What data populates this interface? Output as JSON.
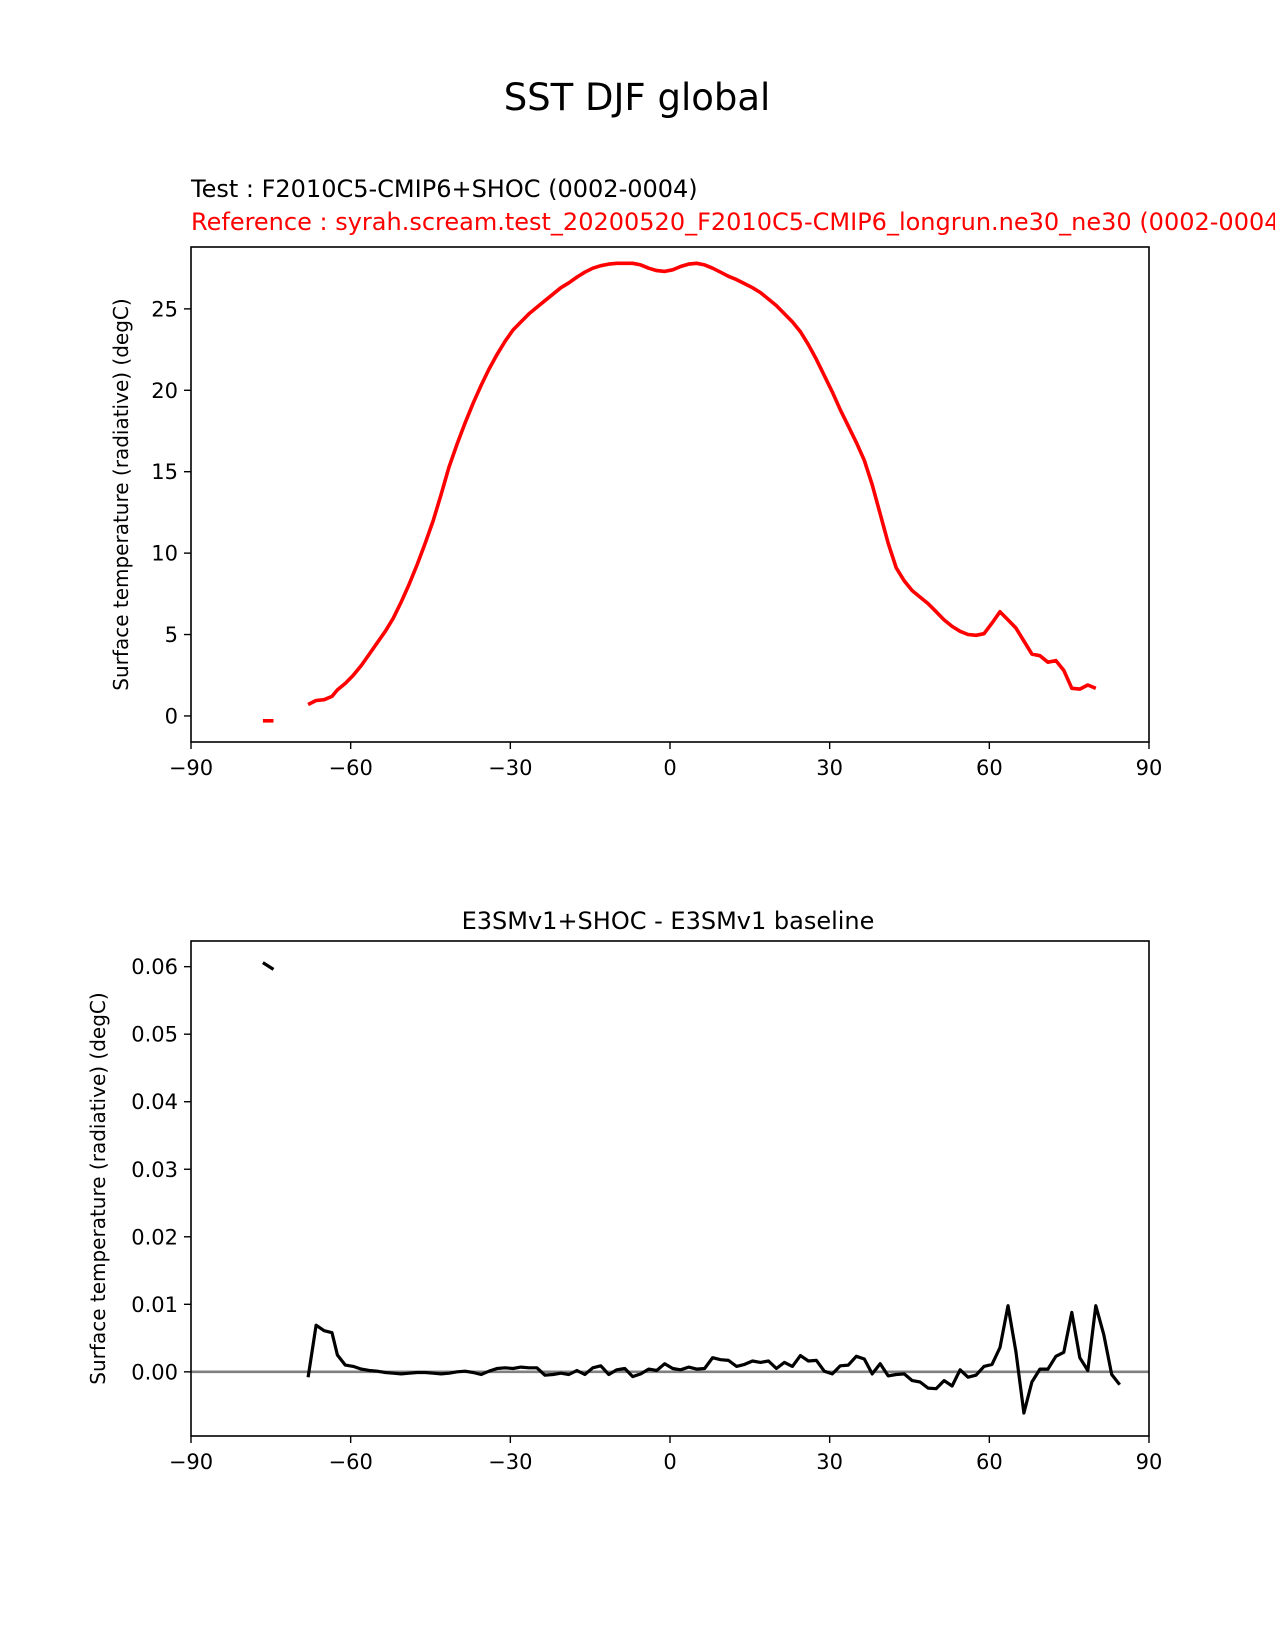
{
  "figure": {
    "suptitle": "SST DJF global"
  },
  "chart_data": [
    {
      "type": "line",
      "title_test": "Test : F2010C5-CMIP6+SHOC (0002-0004)",
      "title_reference": "Reference : syrah.scream.test_20200520_F2010C5-CMIP6_longrun.ne30_ne30 (0002-0004",
      "xlabel": "",
      "ylabel": "Surface temperature (radiative) (degC)",
      "xlim": [
        -90,
        90
      ],
      "ylim": [
        -1.6,
        28.8
      ],
      "xticks": [
        -90,
        -60,
        -30,
        0,
        30,
        60,
        90
      ],
      "xtick_labels": [
        "−90",
        "−60",
        "−30",
        "0",
        "30",
        "60",
        "90"
      ],
      "yticks": [
        0,
        5,
        10,
        15,
        20,
        25
      ],
      "ytick_labels": [
        "0",
        "5",
        "10",
        "15",
        "20",
        "25"
      ],
      "grid": false,
      "colors": {
        "series": "#ff0000"
      },
      "series": [
        {
          "segments": [
            [
              [
                -76.5,
                -0.3
              ],
              [
                -74.5,
                -0.3
              ]
            ],
            [
              [
                -68,
                0.7
              ],
              [
                -66.5,
                0.95
              ],
              [
                -65,
                1.0
              ],
              [
                -63.5,
                1.2
              ],
              [
                -62.5,
                1.6
              ],
              [
                -61,
                2.0
              ],
              [
                -59.5,
                2.5
              ],
              [
                -58,
                3.1
              ],
              [
                -56.5,
                3.8
              ],
              [
                -55,
                4.5
              ],
              [
                -53.5,
                5.2
              ],
              [
                -52,
                6.0
              ],
              [
                -50.5,
                7.0
              ],
              [
                -49,
                8.1
              ],
              [
                -47.5,
                9.3
              ],
              [
                -46,
                10.6
              ],
              [
                -44.5,
                12.0
              ],
              [
                -43,
                13.6
              ],
              [
                -41.5,
                15.3
              ],
              [
                -40,
                16.7
              ],
              [
                -38.5,
                18.0
              ],
              [
                -37,
                19.2
              ],
              [
                -35.5,
                20.3
              ],
              [
                -34,
                21.3
              ],
              [
                -32.5,
                22.2
              ],
              [
                -31,
                23.0
              ],
              [
                -29.5,
                23.7
              ],
              [
                -28,
                24.2
              ],
              [
                -26.5,
                24.7
              ],
              [
                -25,
                25.1
              ],
              [
                -23.5,
                25.5
              ],
              [
                -22,
                25.9
              ],
              [
                -20.5,
                26.3
              ],
              [
                -19,
                26.6
              ],
              [
                -17.5,
                26.95
              ],
              [
                -16,
                27.25
              ],
              [
                -14.5,
                27.5
              ],
              [
                -13,
                27.65
              ],
              [
                -11.5,
                27.75
              ],
              [
                -10,
                27.8
              ],
              [
                -8.5,
                27.8
              ],
              [
                -7,
                27.8
              ],
              [
                -5.5,
                27.7
              ],
              [
                -4,
                27.5
              ],
              [
                -2.5,
                27.35
              ],
              [
                -1,
                27.3
              ],
              [
                0.5,
                27.4
              ],
              [
                2,
                27.6
              ],
              [
                3.5,
                27.75
              ],
              [
                5,
                27.8
              ],
              [
                6.5,
                27.7
              ],
              [
                8,
                27.5
              ],
              [
                9.5,
                27.25
              ],
              [
                11,
                27.0
              ],
              [
                12.5,
                26.8
              ],
              [
                14,
                26.55
              ],
              [
                15.5,
                26.3
              ],
              [
                17,
                26.0
              ],
              [
                18.5,
                25.6
              ],
              [
                20,
                25.2
              ],
              [
                21.5,
                24.7
              ],
              [
                23,
                24.2
              ],
              [
                24.5,
                23.6
              ],
              [
                26,
                22.8
              ],
              [
                27.5,
                21.9
              ],
              [
                29,
                20.9
              ],
              [
                30.5,
                19.9
              ],
              [
                32,
                18.8
              ],
              [
                33.5,
                17.8
              ],
              [
                35,
                16.8
              ],
              [
                36.5,
                15.7
              ],
              [
                38,
                14.2
              ],
              [
                39.5,
                12.4
              ],
              [
                41,
                10.6
              ],
              [
                42.5,
                9.1
              ],
              [
                44,
                8.3
              ],
              [
                45.5,
                7.7
              ],
              [
                47,
                7.3
              ],
              [
                48.5,
                6.9
              ],
              [
                50,
                6.4
              ],
              [
                51.5,
                5.9
              ],
              [
                53,
                5.5
              ],
              [
                54.5,
                5.2
              ],
              [
                56,
                5.0
              ],
              [
                57.5,
                4.95
              ],
              [
                59,
                5.05
              ],
              [
                60.5,
                5.7
              ],
              [
                62,
                6.4
              ],
              [
                63.5,
                5.9
              ],
              [
                65,
                5.4
              ],
              [
                66.5,
                4.6
              ],
              [
                68,
                3.8
              ],
              [
                69.5,
                3.7
              ],
              [
                71,
                3.3
              ],
              [
                72.5,
                3.4
              ],
              [
                74,
                2.8
              ],
              [
                75.5,
                1.7
              ],
              [
                77,
                1.65
              ],
              [
                78.5,
                1.9
              ],
              [
                80,
                1.7
              ]
            ]
          ]
        }
      ]
    },
    {
      "type": "line",
      "title": "E3SMv1+SHOC - E3SMv1 baseline",
      "xlabel": "",
      "ylabel": "Surface temperature (radiative) (degC)",
      "xlim": [
        -90,
        90
      ],
      "ylim": [
        -0.0095,
        0.0638
      ],
      "xticks": [
        -90,
        -60,
        -30,
        0,
        30,
        60,
        90
      ],
      "xtick_labels": [
        "−90",
        "−60",
        "−30",
        "0",
        "30",
        "60",
        "90"
      ],
      "yticks": [
        0.0,
        0.01,
        0.02,
        0.03,
        0.04,
        0.05,
        0.06
      ],
      "ytick_labels": [
        "0.00",
        "0.01",
        "0.02",
        "0.03",
        "0.04",
        "0.05",
        "0.06"
      ],
      "grid": false,
      "zero_line": true,
      "colors": {
        "series": "#000000",
        "zero_line": "#808080"
      },
      "series": [
        {
          "segments": [
            [
              [
                -76.5,
                0.0606
              ],
              [
                -74.5,
                0.0596
              ]
            ],
            [
              [
                -68,
                -0.0008
              ],
              [
                -66.5,
                0.0069
              ],
              [
                -65,
                0.0061
              ],
              [
                -63.5,
                0.0058
              ],
              [
                -62.5,
                0.0025
              ],
              [
                -61,
                0.001
              ],
              [
                -59.5,
                0.0008
              ],
              [
                -58,
                0.0004
              ],
              [
                -56.5,
                0.0002
              ],
              [
                -55,
                0.0001
              ],
              [
                -53.5,
                -0.0001
              ],
              [
                -52,
                -0.0002
              ],
              [
                -50.5,
                -0.0003
              ],
              [
                -49,
                -0.0002
              ],
              [
                -47.5,
                -0.0001
              ],
              [
                -46,
                -0.0001
              ],
              [
                -44.5,
                -0.0002
              ],
              [
                -43,
                -0.0003
              ],
              [
                -41.5,
                -0.0002
              ],
              [
                -40,
                0.0
              ],
              [
                -38.5,
                0.0001
              ],
              [
                -37,
                -0.0001
              ],
              [
                -35.5,
                -0.0004
              ],
              [
                -34,
                0.0001
              ],
              [
                -32.5,
                0.0005
              ],
              [
                -31,
                0.0006
              ],
              [
                -29.5,
                0.0005
              ],
              [
                -28,
                0.0007
              ],
              [
                -26.5,
                0.0006
              ],
              [
                -25,
                0.0006
              ],
              [
                -23.5,
                -0.0005
              ],
              [
                -22,
                -0.0004
              ],
              [
                -20.5,
                -0.0002
              ],
              [
                -19,
                -0.0004
              ],
              [
                -17.5,
                0.0002
              ],
              [
                -16,
                -0.0004
              ],
              [
                -14.5,
                0.0006
              ],
              [
                -13,
                0.0009
              ],
              [
                -11.5,
                -0.0004
              ],
              [
                -10,
                0.0003
              ],
              [
                -8.5,
                0.0005
              ],
              [
                -7,
                -0.0007
              ],
              [
                -5.5,
                -0.0003
              ],
              [
                -4,
                0.0004
              ],
              [
                -2.5,
                0.0002
              ],
              [
                -1,
                0.0012
              ],
              [
                0.5,
                0.0005
              ],
              [
                2,
                0.0003
              ],
              [
                3.5,
                0.0007
              ],
              [
                5,
                0.0004
              ],
              [
                6.5,
                0.0005
              ],
              [
                8,
                0.0021
              ],
              [
                9.5,
                0.0018
              ],
              [
                11,
                0.0017
              ],
              [
                12.5,
                0.0008
              ],
              [
                14,
                0.0011
              ],
              [
                15.5,
                0.0016
              ],
              [
                17,
                0.0014
              ],
              [
                18.5,
                0.0016
              ],
              [
                20,
                0.0005
              ],
              [
                21.5,
                0.0014
              ],
              [
                23,
                0.0008
              ],
              [
                24.5,
                0.0024
              ],
              [
                26,
                0.0016
              ],
              [
                27.5,
                0.0017
              ],
              [
                29,
                0.0001
              ],
              [
                30.5,
                -0.0003
              ],
              [
                32,
                0.0009
              ],
              [
                33.5,
                0.001
              ],
              [
                35,
                0.0023
              ],
              [
                36.5,
                0.0019
              ],
              [
                38,
                -0.0003
              ],
              [
                39.5,
                0.0012
              ],
              [
                41,
                -0.0006
              ],
              [
                42.5,
                -0.0004
              ],
              [
                44,
                -0.0003
              ],
              [
                45.5,
                -0.0013
              ],
              [
                47,
                -0.0015
              ],
              [
                48.5,
                -0.0024
              ],
              [
                50,
                -0.0025
              ],
              [
                51.5,
                -0.0013
              ],
              [
                53,
                -0.0021
              ],
              [
                54.5,
                0.0003
              ],
              [
                56,
                -0.0008
              ],
              [
                57.5,
                -0.0005
              ],
              [
                59,
                0.0008
              ],
              [
                60.5,
                0.0011
              ],
              [
                62,
                0.0036
              ],
              [
                63.5,
                0.0098
              ],
              [
                65,
                0.003
              ],
              [
                66.5,
                -0.0061
              ],
              [
                68,
                -0.0015
              ],
              [
                69.5,
                0.0004
              ],
              [
                71,
                0.0004
              ],
              [
                72.5,
                0.0023
              ],
              [
                74,
                0.0029
              ],
              [
                75.5,
                0.0088
              ],
              [
                77,
                0.0021
              ],
              [
                78.5,
                0.0002
              ],
              [
                80,
                0.0098
              ],
              [
                81.5,
                0.0055
              ],
              [
                83,
                -0.0004
              ],
              [
                84.5,
                -0.0019
              ]
            ]
          ]
        }
      ]
    }
  ]
}
